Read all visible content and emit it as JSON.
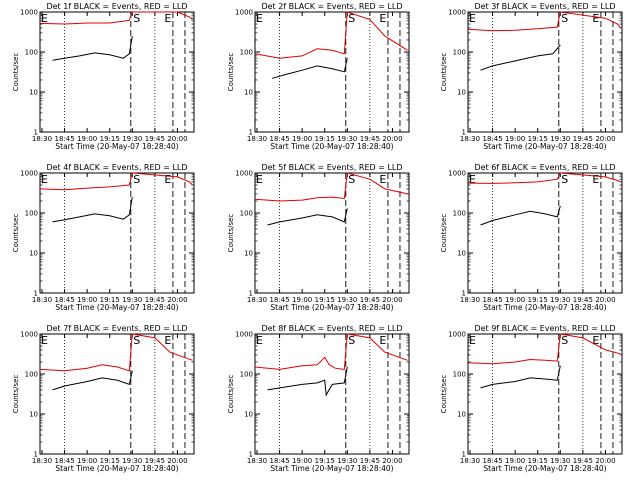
{
  "shared": {
    "xlabel": "Start Time (20-May-07 18:28:40)",
    "ylabel": "Counts/sec",
    "x_ticks": [
      "18:30",
      "18:45",
      "19:00",
      "19:15",
      "19:30",
      "19:45",
      "20:00"
    ],
    "y_ticks": [
      "1",
      "10",
      "100",
      "1000"
    ],
    "marker_labels": [
      "S",
      "E",
      "E"
    ]
  },
  "colors": {
    "events": "#000000",
    "lld": "#e00000"
  },
  "chart_data": [
    {
      "type": "line",
      "title": "Det 1f BLACK = Events, RED = LLD",
      "xlabel": "Start Time (20-May-07 18:28:40)",
      "ylabel": "Counts/sec",
      "y_scale": "log",
      "xlim": [
        "18:28:40",
        "20:11:00"
      ],
      "ylim": [
        1,
        1000
      ],
      "series": [
        {
          "name": "Events",
          "x": [
            "18:37",
            "18:45",
            "18:55",
            "19:05",
            "19:15",
            "19:24",
            "19:28",
            "19:30"
          ],
          "y": [
            62,
            70,
            80,
            95,
            85,
            70,
            90,
            250
          ]
        },
        {
          "name": "LLD",
          "x": [
            "18:28:40",
            "18:45",
            "19:00",
            "19:15",
            "19:28",
            "19:30",
            "20:00",
            "20:08",
            "20:10"
          ],
          "y": [
            520,
            500,
            530,
            530,
            620,
            1000,
            1000,
            750,
            650
          ]
        }
      ]
    },
    {
      "type": "line",
      "title": "Det 2f BLACK = Events, RED = LLD",
      "xlabel": "Start Time (20-May-07 18:28:40)",
      "ylabel": "Counts/sec",
      "y_scale": "log",
      "xlim": [
        "18:28:40",
        "20:11:00"
      ],
      "ylim": [
        1,
        1000
      ],
      "series": [
        {
          "name": "Events",
          "x": [
            "18:40",
            "18:50",
            "19:00",
            "19:10",
            "19:20",
            "19:28",
            "19:30"
          ],
          "y": [
            22,
            28,
            35,
            45,
            38,
            32,
            70
          ]
        },
        {
          "name": "LLD",
          "x": [
            "18:28:40",
            "18:45",
            "19:00",
            "19:10",
            "19:20",
            "19:28",
            "19:30",
            "19:45",
            "19:55",
            "20:10"
          ],
          "y": [
            90,
            70,
            80,
            120,
            110,
            90,
            1000,
            650,
            250,
            110
          ]
        }
      ]
    },
    {
      "type": "line",
      "title": "Det 3f BLACK = Events, RED = LLD",
      "xlabel": "Start Time (20-May-07 18:28:40)",
      "ylabel": "Counts/sec",
      "y_scale": "log",
      "xlim": [
        "18:28:40",
        "20:11:00"
      ],
      "ylim": [
        1,
        1000
      ],
      "series": [
        {
          "name": "Events",
          "x": [
            "18:37",
            "18:45",
            "19:00",
            "19:15",
            "19:25",
            "19:30"
          ],
          "y": [
            35,
            45,
            60,
            80,
            90,
            150
          ]
        },
        {
          "name": "LLD",
          "x": [
            "18:28:40",
            "18:45",
            "19:00",
            "19:15",
            "19:28",
            "19:30",
            "20:00",
            "20:08",
            "20:10"
          ],
          "y": [
            370,
            340,
            350,
            380,
            420,
            1000,
            700,
            500,
            400
          ]
        }
      ]
    },
    {
      "type": "line",
      "title": "Det 4f BLACK = Events, RED = LLD",
      "xlabel": "Start Time (20-May-07 18:28:40)",
      "ylabel": "Counts/sec",
      "y_scale": "log",
      "xlim": [
        "18:28:40",
        "20:11:00"
      ],
      "ylim": [
        1,
        1000
      ],
      "series": [
        {
          "name": "Events",
          "x": [
            "18:37",
            "18:45",
            "18:55",
            "19:05",
            "19:15",
            "19:24",
            "19:28",
            "19:30"
          ],
          "y": [
            60,
            68,
            80,
            95,
            85,
            70,
            90,
            250
          ]
        },
        {
          "name": "LLD",
          "x": [
            "18:28:40",
            "18:45",
            "19:00",
            "19:15",
            "19:28",
            "19:30",
            "20:00",
            "20:08",
            "20:10"
          ],
          "y": [
            400,
            380,
            420,
            450,
            500,
            1000,
            800,
            600,
            500
          ]
        }
      ]
    },
    {
      "type": "line",
      "title": "Det 5f BLACK = Events, RED = LLD",
      "xlabel": "Start Time (20-May-07 18:28:40)",
      "ylabel": "Counts/sec",
      "y_scale": "log",
      "xlim": [
        "18:28:40",
        "20:11:00"
      ],
      "ylim": [
        1,
        1000
      ],
      "series": [
        {
          "name": "Events",
          "x": [
            "18:37",
            "18:45",
            "19:00",
            "19:10",
            "19:20",
            "19:28",
            "19:30"
          ],
          "y": [
            50,
            60,
            75,
            90,
            80,
            60,
            130
          ]
        },
        {
          "name": "LLD",
          "x": [
            "18:28:40",
            "18:45",
            "19:00",
            "19:10",
            "19:20",
            "19:28",
            "19:30",
            "19:45",
            "19:55",
            "20:10"
          ],
          "y": [
            220,
            200,
            210,
            240,
            250,
            230,
            1000,
            700,
            400,
            300
          ]
        }
      ]
    },
    {
      "type": "line",
      "title": "Det 6f BLACK = Events, RED = LLD",
      "xlabel": "Start Time (20-May-07 18:28:40)",
      "ylabel": "Counts/sec",
      "y_scale": "log",
      "xlim": [
        "18:28:40",
        "20:11:00"
      ],
      "ylim": [
        1,
        1000
      ],
      "series": [
        {
          "name": "Events",
          "x": [
            "18:37",
            "18:45",
            "19:00",
            "19:10",
            "19:20",
            "19:28",
            "19:30"
          ],
          "y": [
            50,
            65,
            90,
            110,
            95,
            80,
            150
          ]
        },
        {
          "name": "LLD",
          "x": [
            "18:28:40",
            "18:45",
            "19:00",
            "19:15",
            "19:28",
            "19:30",
            "20:00",
            "20:08",
            "20:10"
          ],
          "y": [
            560,
            550,
            570,
            600,
            700,
            1000,
            800,
            650,
            600
          ]
        }
      ]
    },
    {
      "type": "line",
      "title": "Det 7f BLACK = Events, RED = LLD",
      "xlabel": "Start Time (20-May-07 18:28:40)",
      "ylabel": "Counts/sec",
      "y_scale": "log",
      "xlim": [
        "18:28:40",
        "20:11:00"
      ],
      "ylim": [
        1,
        1000
      ],
      "series": [
        {
          "name": "Events",
          "x": [
            "18:37",
            "18:45",
            "19:00",
            "19:10",
            "19:20",
            "19:28",
            "19:30"
          ],
          "y": [
            40,
            50,
            65,
            80,
            70,
            55,
            120
          ]
        },
        {
          "name": "LLD",
          "x": [
            "18:28:40",
            "18:45",
            "19:00",
            "19:10",
            "19:20",
            "19:28",
            "19:30",
            "19:45",
            "19:55",
            "20:10"
          ],
          "y": [
            130,
            120,
            140,
            170,
            150,
            120,
            1000,
            800,
            350,
            220
          ]
        }
      ]
    },
    {
      "type": "line",
      "title": "Det 8f BLACK = Events, RED = LLD",
      "xlabel": "Start Time (20-May-07 18:28:40)",
      "ylabel": "Counts/sec",
      "y_scale": "log",
      "xlim": [
        "18:28:40",
        "20:11:00"
      ],
      "ylim": [
        1,
        1000
      ],
      "series": [
        {
          "name": "Events",
          "x": [
            "18:37",
            "18:45",
            "19:00",
            "19:10",
            "19:15",
            "19:16",
            "19:20",
            "19:28",
            "19:30"
          ],
          "y": [
            40,
            45,
            55,
            60,
            70,
            30,
            55,
            60,
            150
          ]
        },
        {
          "name": "LLD",
          "x": [
            "18:28:40",
            "18:45",
            "19:00",
            "19:10",
            "19:15",
            "19:18",
            "19:22",
            "19:28",
            "19:30",
            "19:45",
            "19:55",
            "20:10"
          ],
          "y": [
            150,
            130,
            160,
            170,
            260,
            170,
            140,
            130,
            1000,
            800,
            350,
            220
          ]
        }
      ]
    },
    {
      "type": "line",
      "title": "Det 9f BLACK = Events, RED = LLD",
      "xlabel": "Start Time (20-May-07 18:28:40)",
      "ylabel": "Counts/sec",
      "y_scale": "log",
      "xlim": [
        "18:28:40",
        "20:11:00"
      ],
      "ylim": [
        1,
        1000
      ],
      "series": [
        {
          "name": "Events",
          "x": [
            "18:37",
            "18:45",
            "19:00",
            "19:10",
            "19:20",
            "19:28",
            "19:30"
          ],
          "y": [
            45,
            55,
            65,
            80,
            75,
            70,
            160
          ]
        },
        {
          "name": "LLD",
          "x": [
            "18:28:40",
            "18:45",
            "19:00",
            "19:10",
            "19:20",
            "19:28",
            "19:30",
            "19:45",
            "20:00",
            "20:10"
          ],
          "y": [
            190,
            180,
            200,
            230,
            220,
            210,
            1000,
            800,
            400,
            320
          ]
        }
      ]
    }
  ]
}
